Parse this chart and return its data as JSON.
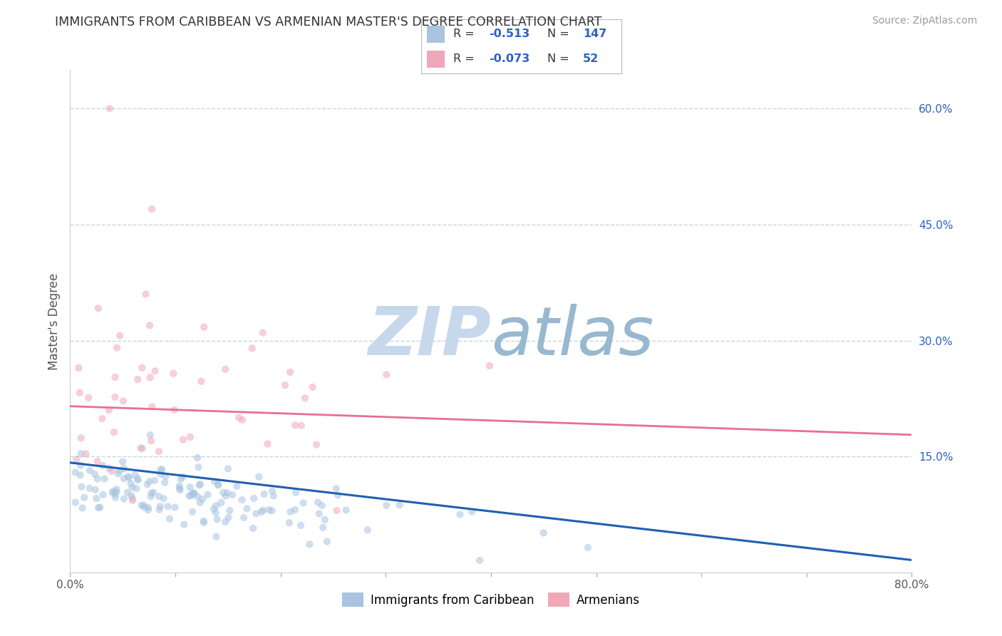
{
  "title": "IMMIGRANTS FROM CARIBBEAN VS ARMENIAN MASTER'S DEGREE CORRELATION CHART",
  "source": "Source: ZipAtlas.com",
  "ylabel": "Master's Degree",
  "x_min": 0.0,
  "x_max": 0.8,
  "y_min": 0.0,
  "y_max": 0.65,
  "x_ticks": [
    0.0,
    0.1,
    0.2,
    0.3,
    0.4,
    0.5,
    0.6,
    0.7,
    0.8
  ],
  "y_ticks_right": [
    0.15,
    0.3,
    0.45,
    0.6
  ],
  "y_tick_labels_right": [
    "15.0%",
    "30.0%",
    "45.0%",
    "60.0%"
  ],
  "caribbean_R": -0.513,
  "caribbean_N": 147,
  "armenian_R": -0.073,
  "armenian_N": 52,
  "blue_color": "#a8c4e0",
  "pink_color": "#f0a8b8",
  "blue_line_color": "#2060b0",
  "pink_line_color": "#e87090",
  "legend_R_color": "#3060c0",
  "legend_N_color": "#404040",
  "background_color": "#ffffff",
  "grid_color": "#c8d4e4",
  "watermark_zip_color": "#c8d8ec",
  "watermark_atlas_color": "#98b8d0",
  "scatter_size": 55,
  "scatter_alpha": 0.55,
  "blue_line_start_y": 0.142,
  "blue_line_end_y": 0.016,
  "pink_line_start_y": 0.215,
  "pink_line_end_y": 0.178,
  "seed_carib": 42,
  "seed_armen": 99
}
